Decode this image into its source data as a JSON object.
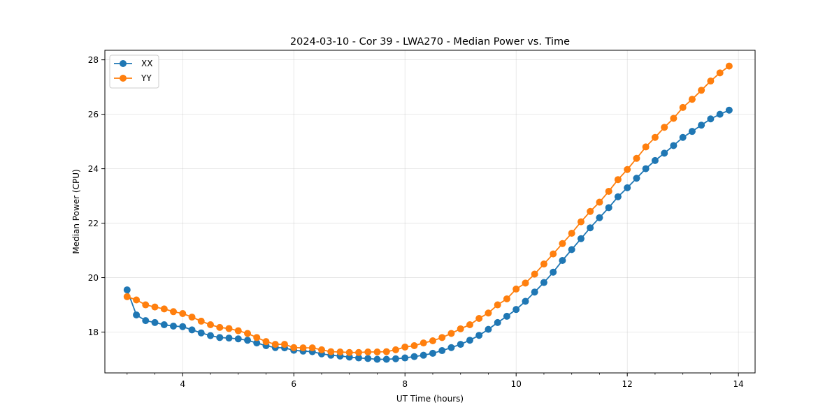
{
  "chart_data": {
    "type": "line",
    "title": "2024-03-10 - Cor 39 - LWA270 - Median Power vs. Time",
    "xlabel": "UT Time (hours)",
    "ylabel": "Median Power (CPU)",
    "xlim": [
      2.6,
      14.3
    ],
    "ylim": [
      16.5,
      28.35
    ],
    "xticks": [
      4,
      6,
      8,
      10,
      12,
      14
    ],
    "yticks": [
      18,
      20,
      22,
      24,
      26,
      28
    ],
    "grid": true,
    "legend_position": "top-left",
    "x": [
      3.0,
      3.167,
      3.333,
      3.5,
      3.667,
      3.833,
      4.0,
      4.167,
      4.333,
      4.5,
      4.667,
      4.833,
      5.0,
      5.167,
      5.333,
      5.5,
      5.667,
      5.833,
      6.0,
      6.167,
      6.333,
      6.5,
      6.667,
      6.833,
      7.0,
      7.167,
      7.333,
      7.5,
      7.667,
      7.833,
      8.0,
      8.167,
      8.333,
      8.5,
      8.667,
      8.833,
      9.0,
      9.167,
      9.333,
      9.5,
      9.667,
      9.833,
      10.0,
      10.167,
      10.333,
      10.5,
      10.667,
      10.833,
      11.0,
      11.167,
      11.333,
      11.5,
      11.667,
      11.833,
      12.0,
      12.167,
      12.333,
      12.5,
      12.667,
      12.833,
      13.0,
      13.167,
      13.333,
      13.5,
      13.667,
      13.833
    ],
    "series": [
      {
        "name": "XX",
        "color": "#1f77b4",
        "values": [
          19.55,
          18.63,
          18.42,
          18.35,
          18.27,
          18.22,
          18.2,
          18.08,
          17.97,
          17.87,
          17.8,
          17.78,
          17.75,
          17.7,
          17.6,
          17.5,
          17.43,
          17.42,
          17.33,
          17.3,
          17.28,
          17.2,
          17.15,
          17.12,
          17.08,
          17.05,
          17.03,
          17.0,
          17.0,
          17.02,
          17.05,
          17.1,
          17.15,
          17.22,
          17.32,
          17.43,
          17.55,
          17.7,
          17.88,
          18.1,
          18.35,
          18.58,
          18.83,
          19.13,
          19.47,
          19.82,
          20.2,
          20.63,
          21.03,
          21.43,
          21.83,
          22.2,
          22.57,
          22.97,
          23.3,
          23.65,
          24.0,
          24.3,
          24.57,
          24.85,
          25.15,
          25.37,
          25.6,
          25.83,
          26.0,
          26.15
        ]
      },
      {
        "name": "YY",
        "color": "#ff7f0e",
        "values": [
          19.3,
          19.18,
          19.0,
          18.92,
          18.85,
          18.75,
          18.68,
          18.55,
          18.4,
          18.27,
          18.17,
          18.13,
          18.05,
          17.95,
          17.8,
          17.65,
          17.55,
          17.55,
          17.43,
          17.42,
          17.42,
          17.35,
          17.28,
          17.27,
          17.25,
          17.25,
          17.27,
          17.27,
          17.28,
          17.35,
          17.45,
          17.5,
          17.6,
          17.68,
          17.8,
          17.95,
          18.12,
          18.27,
          18.5,
          18.7,
          19.0,
          19.22,
          19.58,
          19.8,
          20.13,
          20.5,
          20.87,
          21.25,
          21.63,
          22.05,
          22.43,
          22.77,
          23.17,
          23.6,
          23.97,
          24.38,
          24.8,
          25.15,
          25.52,
          25.85,
          26.25,
          26.55,
          26.88,
          27.22,
          27.52,
          27.77
        ]
      }
    ]
  }
}
